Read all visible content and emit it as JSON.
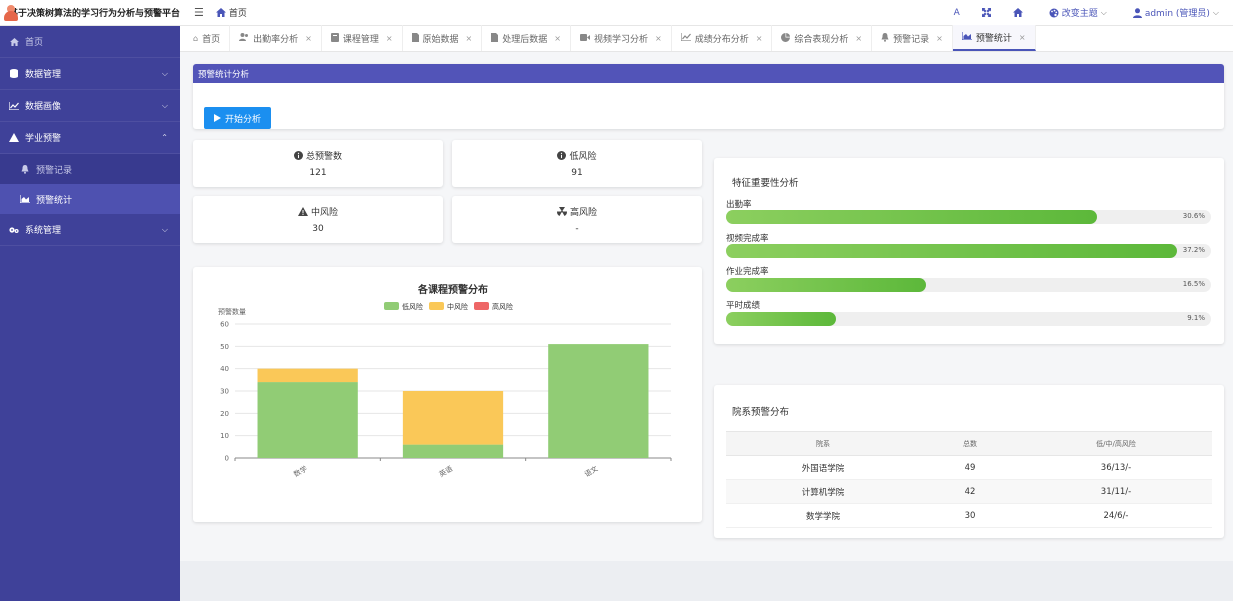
{
  "header": {
    "title": "基于决策树算法的学习行为分析与预警平台",
    "breadcrumb_home": "首页",
    "font_btn": "A",
    "theme_label": "改变主题",
    "user_label": "admin (管理员)"
  },
  "sidebar": {
    "home": "首页",
    "data_mgmt": "数据管理",
    "data_portrait": "数据画像",
    "warning": "学业预警",
    "warning_records": "预警记录",
    "warning_stats": "预警统计",
    "system_mgmt": "系统管理"
  },
  "tabs": [
    "首页",
    "出勤率分析",
    "课程管理",
    "原始数据",
    "处理后数据",
    "视频学习分析",
    "成绩分布分析",
    "综合表现分析",
    "预警记录",
    "预警统计"
  ],
  "analysis": {
    "header": "预警统计分析",
    "start_button": "开始分析"
  },
  "stats": {
    "total_label": "总预警数",
    "total_value": "121",
    "low_label": "低风险",
    "low_value": "91",
    "mid_label": "中风险",
    "mid_value": "30",
    "high_label": "高风险",
    "high_value": "-"
  },
  "chart_data": {
    "type": "bar",
    "title": "各课程预警分布",
    "ylabel": "预警数量",
    "xlabel": "",
    "stacked": true,
    "categories": [
      "数学",
      "英语",
      "语文"
    ],
    "series": [
      {
        "name": "低风险",
        "values": [
          34,
          6,
          51
        ],
        "color": "#91cc75"
      },
      {
        "name": "中风险",
        "values": [
          6,
          24,
          0
        ],
        "color": "#fac858"
      },
      {
        "name": "高风险",
        "values": [
          0,
          0,
          0
        ],
        "color": "#ee6666"
      }
    ],
    "ylim": [
      0,
      60
    ],
    "yticks": [
      0,
      10,
      20,
      30,
      40,
      50,
      60
    ],
    "grid": true,
    "legend_position": "top"
  },
  "features": {
    "title": "特征重要性分析",
    "items": [
      {
        "label": "出勤率",
        "value": 30.6,
        "pct_text": "30.6%"
      },
      {
        "label": "视频完成率",
        "value": 37.2,
        "pct_text": "37.2%"
      },
      {
        "label": "作业完成率",
        "value": 16.5,
        "pct_text": "16.5%"
      },
      {
        "label": "平时成绩",
        "value": 9.1,
        "pct_text": "9.1%"
      }
    ]
  },
  "dept": {
    "title": "院系预警分布",
    "headers": [
      "院系",
      "总数",
      "低/中/高风险"
    ],
    "rows": [
      [
        "外国语学院",
        "49",
        "36/13/-"
      ],
      [
        "计算机学院",
        "42",
        "31/11/-"
      ],
      [
        "数学学院",
        "30",
        "24/6/-"
      ]
    ]
  }
}
